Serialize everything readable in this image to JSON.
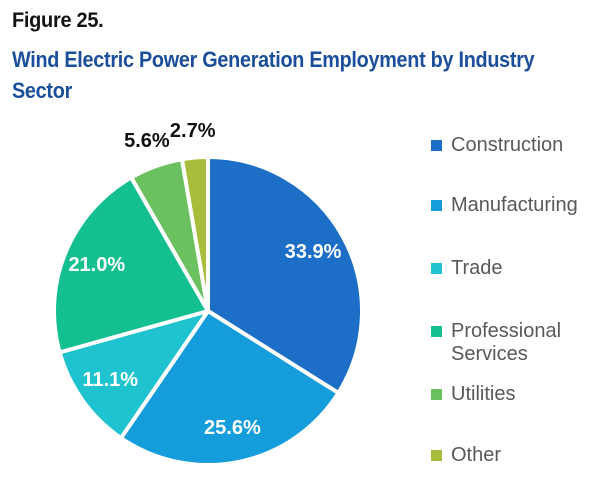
{
  "figure": {
    "label": "Figure 25.",
    "title_line1": "Wind Electric Power Generation Employment by Industry",
    "title_line2": "Sector",
    "title_color": "#1b4e9b"
  },
  "chart_data": {
    "type": "pie",
    "title": "Wind Electric Power Generation Employment by Industry Sector",
    "start_angle_deg": 0,
    "direction": "clockwise",
    "legend_position": "right",
    "label_colors": {
      "inside": "#ffffff",
      "outside": "#111111"
    },
    "slices": [
      {
        "name": "Construction",
        "value": 33.9,
        "label": "33.9%",
        "color": "#1c6ec6",
        "label_position": "inside"
      },
      {
        "name": "Manufacturing",
        "value": 25.6,
        "label": "25.6%",
        "color": "#149dda",
        "label_position": "inside"
      },
      {
        "name": "Trade",
        "value": 11.1,
        "label": "11.1%",
        "color": "#1ec3cf",
        "label_position": "inside"
      },
      {
        "name": "Professional Services",
        "value": 21.0,
        "label": "21.0%",
        "color": "#14bf90",
        "label_position": "inside"
      },
      {
        "name": "Utilities",
        "value": 5.6,
        "label": "5.6%",
        "color": "#6bc15f",
        "label_position": "outside"
      },
      {
        "name": "Other",
        "value": 2.7,
        "label": "2.7%",
        "color": "#a9bd3c",
        "label_position": "outside"
      }
    ]
  }
}
